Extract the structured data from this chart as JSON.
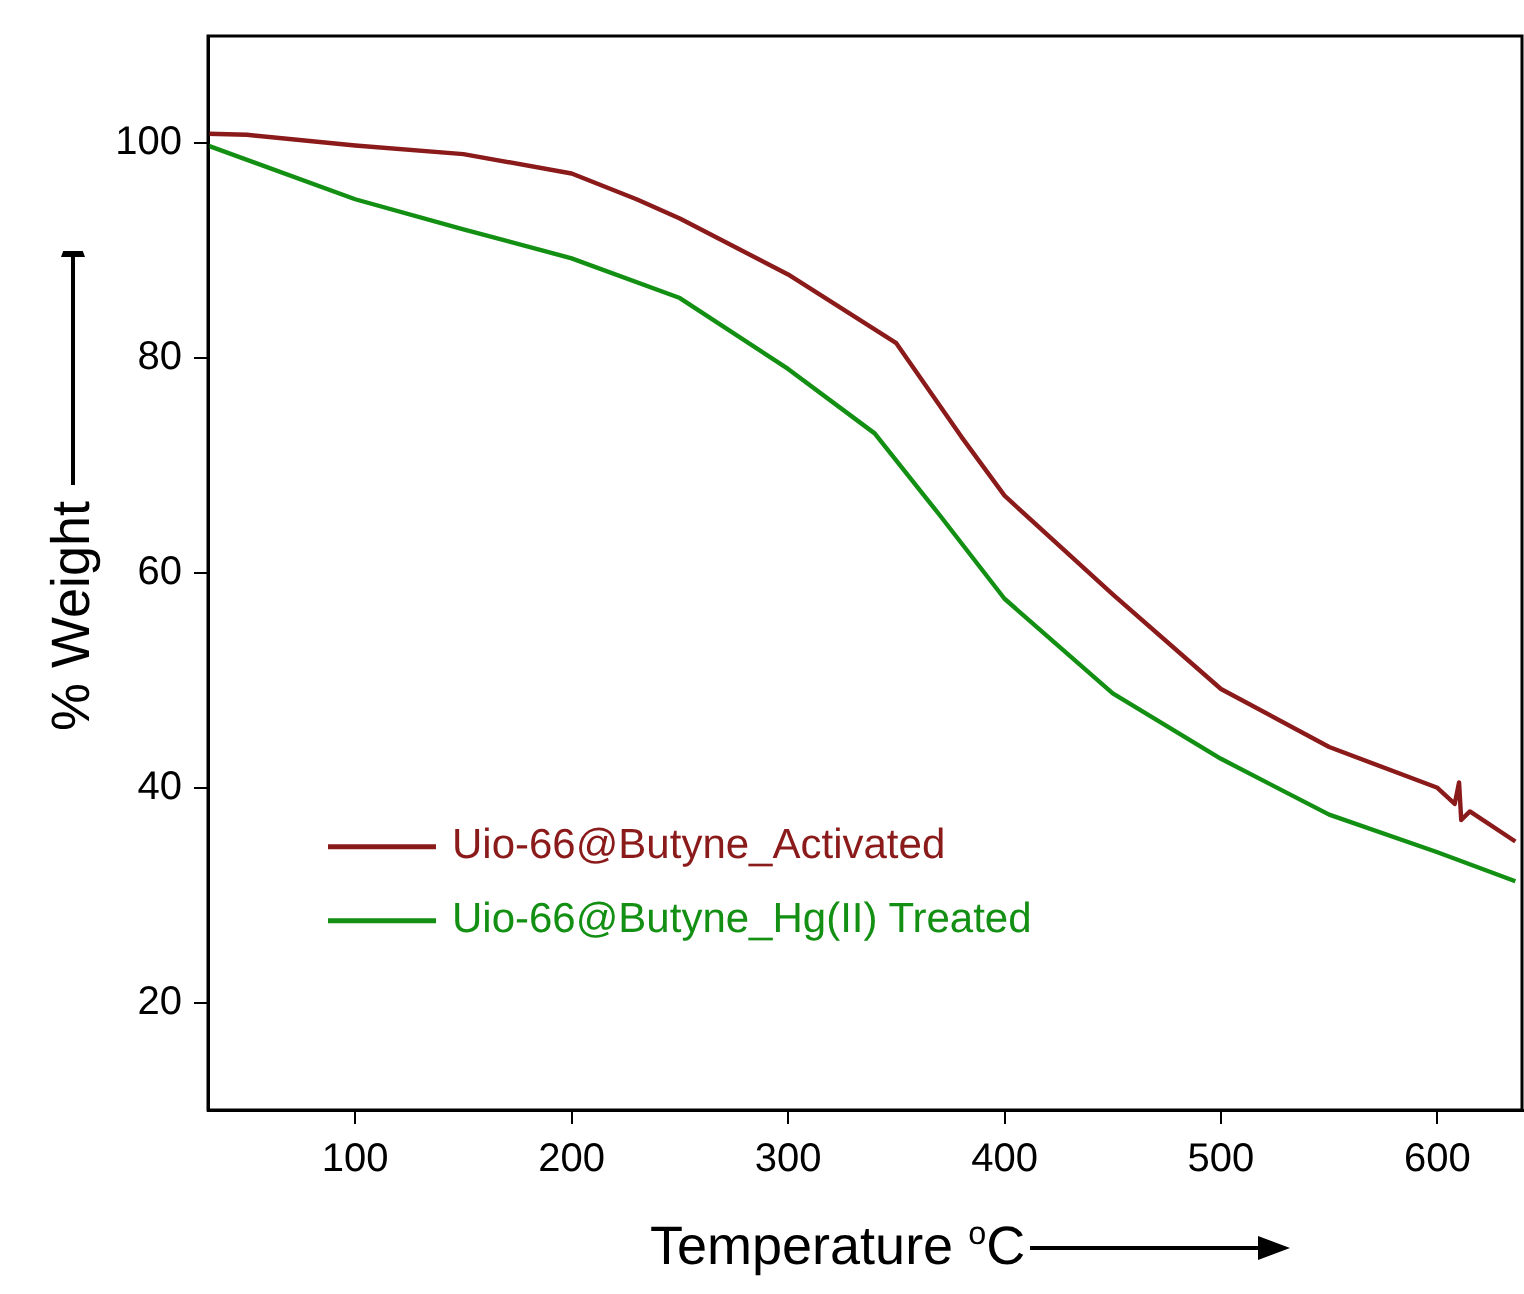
{
  "chart_data": {
    "type": "line",
    "xlabel": "Temperature $^{o}$C",
    "ylabel": "% Weight",
    "xlim": [
      32,
      640
    ],
    "xticks": [
      100,
      200,
      300,
      400,
      500,
      600
    ],
    "ylim": [
      10,
      110
    ],
    "yticks": [
      20,
      40,
      60,
      80,
      100
    ],
    "grid": false,
    "legend": "left",
    "marker": "none",
    "line_style": "solid",
    "series": [
      {
        "name": "Uio-66@Butyne_Activated",
        "color": "#8b1a1a",
        "x": [
          32,
          50,
          100,
          150,
          200,
          230,
          250,
          300,
          350,
          380,
          400,
          450,
          500,
          550,
          600,
          608,
          610,
          611,
          615,
          636
        ],
        "values": [
          100.9,
          100.8,
          99.8,
          99,
          97.2,
          94.8,
          93,
          87.8,
          81.4,
          72.7,
          67.2,
          58,
          49.2,
          43.8,
          40,
          38.5,
          40.5,
          37,
          37.8,
          35
        ]
      },
      {
        "name": "Uio-66@Butyne_Hg(II) Treated",
        "color": "#139013",
        "x": [
          32,
          100,
          150,
          200,
          250,
          300,
          340,
          370,
          400,
          450,
          500,
          550,
          600,
          636
        ],
        "values": [
          99.8,
          94.8,
          92,
          89.3,
          85.6,
          79,
          73,
          65.4,
          57.6,
          48.8,
          42.7,
          37.5,
          34,
          31.3
        ]
      }
    ]
  }
}
